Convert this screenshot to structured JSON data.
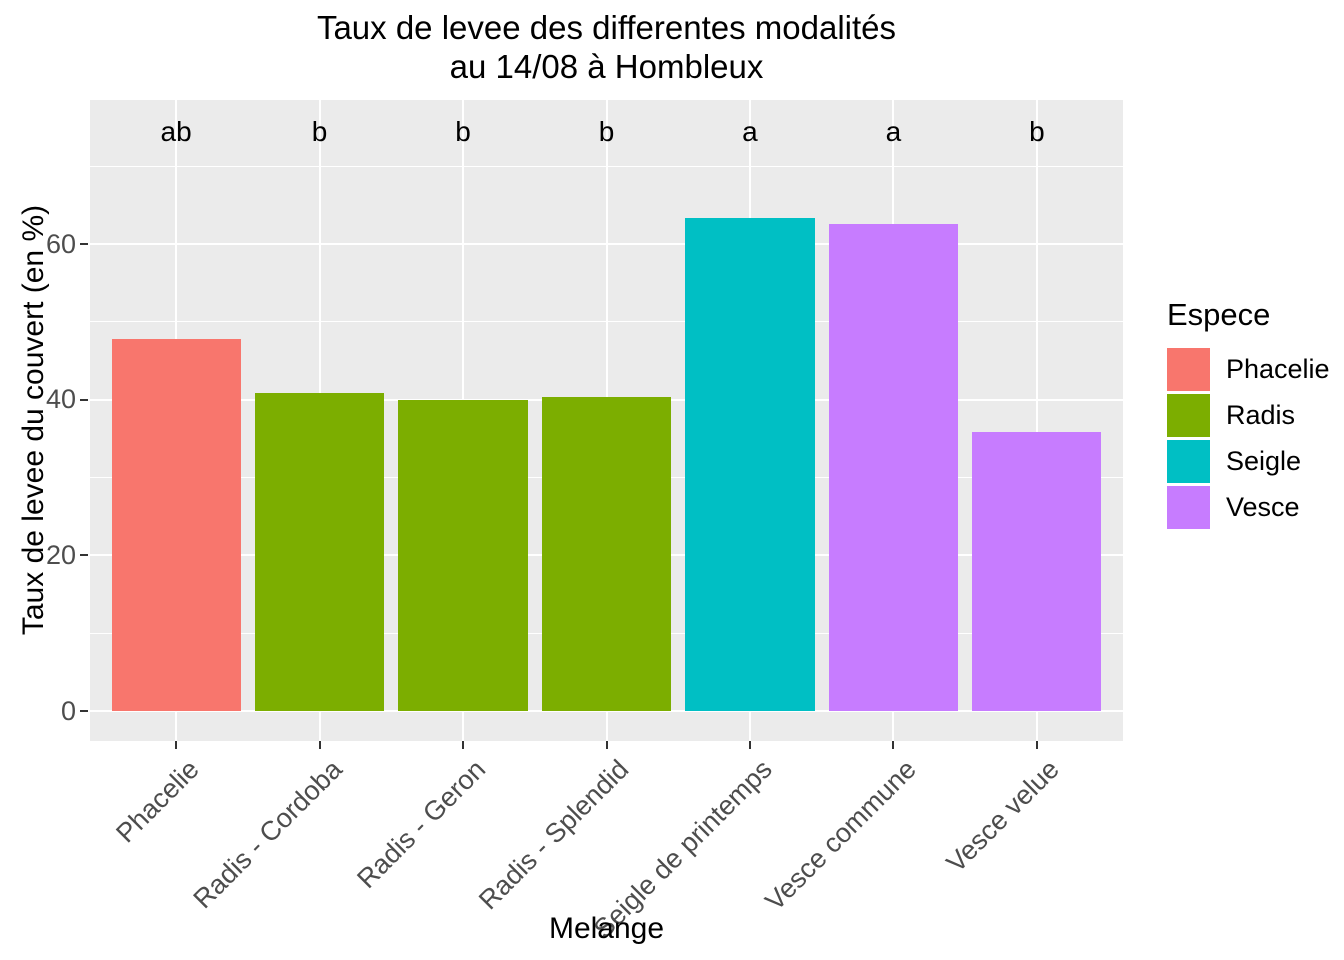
{
  "chart_data": {
    "type": "bar",
    "title_line1": "Taux de levee des differentes modalités",
    "title_line2": "au 14/08 à Hombleux",
    "xlabel": "Melange",
    "ylabel": "Taux de levee du couvert (en %)",
    "categories": [
      "Phacelie",
      "Radis - Cordoba",
      "Radis - Geron",
      "Radis - Splendid",
      "Seigle de printemps",
      "Vesce commune",
      "Vesce velue"
    ],
    "values": [
      47.8,
      40.9,
      39.9,
      40.4,
      63.3,
      62.6,
      35.9
    ],
    "species": [
      "Phacelie",
      "Radis",
      "Radis",
      "Radis",
      "Seigle",
      "Vesce",
      "Vesce"
    ],
    "significance_letters": [
      "ab",
      "b",
      "b",
      "b",
      "a",
      "a",
      "b"
    ],
    "bar_width_fraction": 0.9,
    "yticks": [
      0,
      20,
      40,
      60
    ],
    "yticks_minor": [
      10,
      30,
      50,
      70
    ],
    "ylim": [
      -3.85,
      78.5
    ],
    "grid": true,
    "legend": {
      "title": "Espece",
      "position": "right",
      "entries": [
        {
          "label": "Phacelie",
          "color": "#F8766D"
        },
        {
          "label": "Radis",
          "color": "#7CAE00"
        },
        {
          "label": "Seigle",
          "color": "#00BFC4"
        },
        {
          "label": "Vesce",
          "color": "#C77CFF"
        }
      ]
    },
    "colors": {
      "panel_background": "#EBEBEB",
      "grid_major": "#FFFFFF",
      "grid_minor": "#FFFFFF",
      "tick_mark": "#333333",
      "tick_label": "#4D4D4D",
      "text": "#000000"
    }
  }
}
